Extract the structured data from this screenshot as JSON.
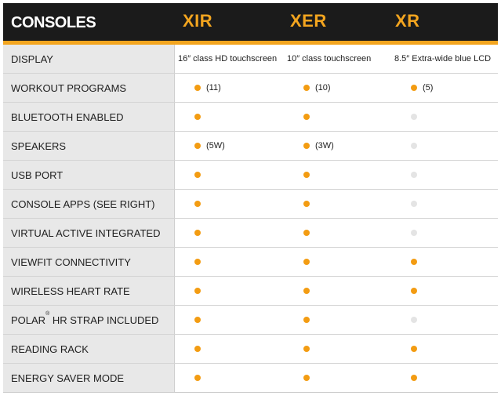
{
  "header": {
    "title": "CONSOLES",
    "models": [
      "XIR",
      "XER",
      "XR"
    ],
    "accent_color": "#f3a51f"
  },
  "rows": [
    {
      "label": "DISPLAY",
      "type": "text",
      "values": [
        "16″ class HD touchscreen",
        "10″ class touchscreen",
        "8.5″ Extra-wide blue LCD"
      ]
    },
    {
      "label": "WORKOUT PROGRAMS",
      "type": "dots",
      "values": [
        true,
        true,
        true
      ],
      "notes": [
        "(11)",
        "(10)",
        "(5)"
      ]
    },
    {
      "label": "BLUETOOTH ENABLED",
      "type": "dots",
      "values": [
        true,
        true,
        false
      ]
    },
    {
      "label": "SPEAKERS",
      "type": "dots",
      "values": [
        true,
        true,
        false
      ],
      "notes": [
        "(5W)",
        "(3W)",
        ""
      ]
    },
    {
      "label": "USB PORT",
      "type": "dots",
      "values": [
        true,
        true,
        false
      ]
    },
    {
      "label": "CONSOLE APPS (SEE RIGHT)",
      "type": "dots",
      "values": [
        true,
        true,
        false
      ]
    },
    {
      "label": "VIRTUAL ACTIVE INTEGRATED",
      "type": "dots",
      "values": [
        true,
        true,
        false
      ]
    },
    {
      "label": "VIEWFIT CONNECTIVITY",
      "type": "dots",
      "values": [
        true,
        true,
        true
      ]
    },
    {
      "label": "WIRELESS HEART RATE",
      "type": "dots",
      "values": [
        true,
        true,
        true
      ]
    },
    {
      "label": "POLAR",
      "label_sup": "®",
      "label_rest": " HR STRAP INCLUDED",
      "type": "dots",
      "values": [
        true,
        true,
        false
      ]
    },
    {
      "label": "READING RACK",
      "type": "dots",
      "values": [
        true,
        true,
        true
      ]
    },
    {
      "label": "ENERGY SAVER MODE",
      "type": "dots",
      "values": [
        true,
        true,
        true
      ]
    }
  ]
}
